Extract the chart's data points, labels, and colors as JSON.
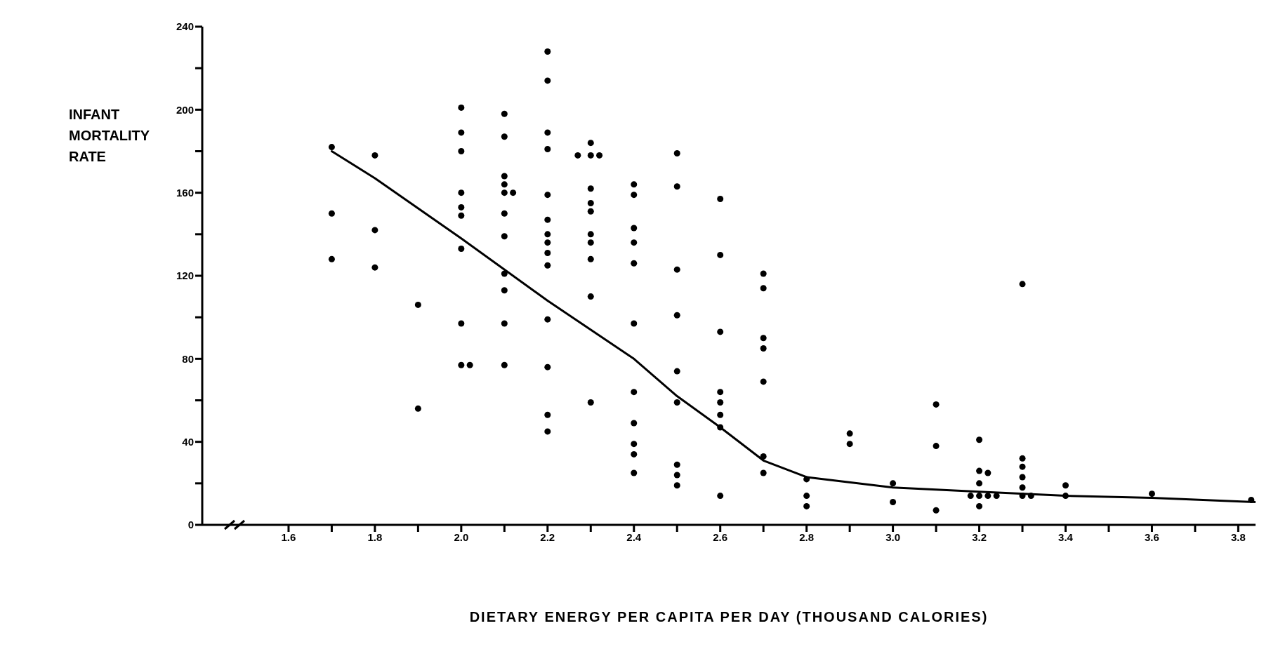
{
  "chart_data": {
    "type": "scatter",
    "xlabel": "DIETARY ENERGY PER CAPITA PER DAY (THOUSAND CALORIES)",
    "ylabel": "INFANT MORTALITY RATE",
    "xlim": [
      1.4,
      3.84
    ],
    "ylim": [
      0,
      240
    ],
    "xticks": [
      1.6,
      {
        "value": 1.7,
        "label": null
      },
      1.8,
      {
        "value": 1.9,
        "label": null
      },
      {
        "value": 2.0,
        "label": "2.0"
      },
      {
        "value": 2.1,
        "label": null
      },
      2.2,
      {
        "value": 2.3,
        "label": null
      },
      2.4,
      {
        "value": 2.5,
        "label": null
      },
      2.6,
      {
        "value": 2.7,
        "label": null
      },
      2.8,
      {
        "value": 2.9,
        "label": null
      },
      {
        "value": 3.0,
        "label": "3.0"
      },
      {
        "value": 3.1,
        "label": null
      },
      3.2,
      {
        "value": 3.3,
        "label": null
      },
      3.4,
      {
        "value": 3.5,
        "label": null
      },
      3.6,
      {
        "value": 3.7,
        "label": null
      },
      3.8
    ],
    "yticks": [
      0,
      {
        "value": 20,
        "label": null
      },
      40,
      {
        "value": 60,
        "label": null
      },
      80,
      {
        "value": 100,
        "label": null
      },
      120,
      {
        "value": 140,
        "label": null
      },
      160,
      {
        "value": 180,
        "label": null
      },
      200,
      {
        "value": 220,
        "label": null
      },
      240
    ],
    "series": [
      {
        "color": "#000000",
        "marker": "circle",
        "x": [
          1.7,
          1.7,
          1.7,
          1.8,
          1.8,
          1.8,
          1.9,
          1.9,
          2.0,
          2.0,
          2.0,
          2.0,
          2.0,
          2.0,
          2.0,
          2.0,
          2.0,
          2.02,
          2.1,
          2.1,
          2.1,
          2.1,
          2.1,
          2.1,
          2.1,
          2.1,
          2.1,
          2.1,
          2.1,
          2.12,
          2.2,
          2.2,
          2.2,
          2.2,
          2.2,
          2.2,
          2.2,
          2.2,
          2.2,
          2.2,
          2.2,
          2.2,
          2.2,
          2.2,
          2.27,
          2.3,
          2.3,
          2.3,
          2.3,
          2.3,
          2.3,
          2.3,
          2.3,
          2.3,
          2.3,
          2.32,
          2.4,
          2.4,
          2.4,
          2.4,
          2.4,
          2.4,
          2.4,
          2.4,
          2.4,
          2.4,
          2.4,
          2.5,
          2.5,
          2.5,
          2.5,
          2.5,
          2.5,
          2.5,
          2.5,
          2.5,
          2.6,
          2.6,
          2.6,
          2.6,
          2.6,
          2.6,
          2.6,
          2.6,
          2.7,
          2.7,
          2.7,
          2.7,
          2.7,
          2.7,
          2.7,
          2.8,
          2.8,
          2.8,
          2.9,
          2.9,
          3.0,
          3.0,
          3.1,
          3.1,
          3.1,
          3.2,
          3.2,
          3.2,
          3.2,
          3.2,
          3.22,
          3.18,
          3.22,
          3.24,
          3.3,
          3.3,
          3.3,
          3.3,
          3.3,
          3.3,
          3.32,
          3.4,
          3.4,
          3.6,
          3.83
        ],
        "values": [
          182,
          150,
          128,
          178,
          142,
          124,
          106,
          56,
          201,
          189,
          180,
          160,
          153,
          149,
          133,
          97,
          77,
          77,
          198,
          187,
          168,
          164,
          160,
          150,
          139,
          121,
          113,
          97,
          77,
          160,
          228,
          214,
          189,
          181,
          159,
          147,
          140,
          136,
          131,
          125,
          99,
          76,
          53,
          45,
          178,
          184,
          178,
          162,
          155,
          151,
          140,
          136,
          128,
          110,
          59,
          178,
          164,
          159,
          143,
          136,
          126,
          97,
          64,
          49,
          39,
          34,
          25,
          179,
          163,
          123,
          101,
          74,
          59,
          29,
          24,
          19,
          157,
          130,
          93,
          64,
          59,
          53,
          47,
          14,
          121,
          114,
          90,
          85,
          69,
          33,
          25,
          22,
          14,
          9,
          44,
          39,
          20,
          11,
          58,
          38,
          7,
          41,
          26,
          20,
          14,
          9,
          25,
          14,
          14,
          14,
          116,
          32,
          28,
          23,
          18,
          14,
          14,
          19,
          14,
          15,
          12
        ]
      },
      {
        "type": "line",
        "color": "#000000",
        "marker": "none",
        "line_style": "solid",
        "x": [
          1.7,
          1.8,
          2.0,
          2.2,
          2.4,
          2.5,
          2.6,
          2.7,
          2.8,
          3.0,
          3.2,
          3.4,
          3.6,
          3.84
        ],
        "values": [
          180,
          167,
          138,
          108,
          80,
          62,
          47,
          31,
          23,
          18,
          16,
          14,
          13,
          11
        ]
      }
    ]
  }
}
